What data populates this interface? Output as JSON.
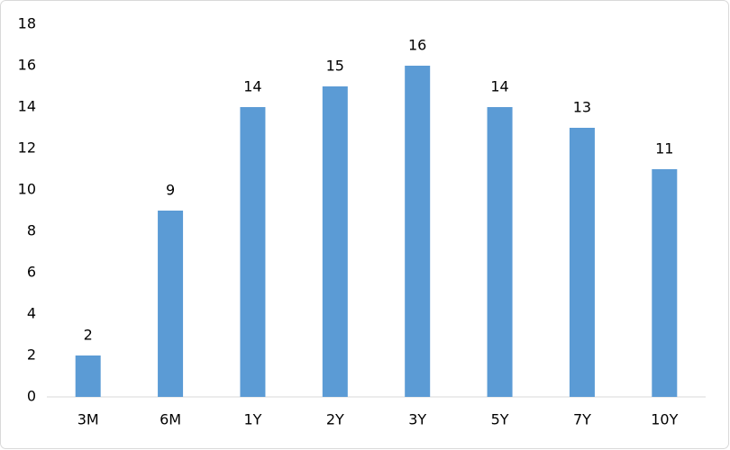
{
  "chart_data": {
    "type": "bar",
    "categories": [
      "3M",
      "6M",
      "1Y",
      "2Y",
      "3Y",
      "5Y",
      "7Y",
      "10Y"
    ],
    "values": [
      2,
      9,
      14,
      15,
      16,
      14,
      13,
      11
    ],
    "color": "#5b9bd5",
    "ylim": [
      0,
      18
    ],
    "yticks": [
      0,
      2,
      4,
      6,
      8,
      10,
      12,
      14,
      16,
      18
    ],
    "grid": false
  }
}
